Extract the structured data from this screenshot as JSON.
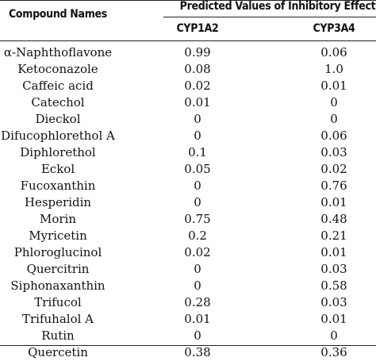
{
  "table": {
    "header": {
      "compound_label": "Compound Names",
      "group_label": "Predicted Values of Inhibitory Effect",
      "col_a": "CYP1A2",
      "col_b": "CYP3A4"
    },
    "rows": [
      {
        "name": "α-Naphthoflavone",
        "cyp1a2": "0.99",
        "cyp3a4": "0.06"
      },
      {
        "name": "Ketoconazole",
        "cyp1a2": "0.08",
        "cyp3a4": "1.0"
      },
      {
        "name": "Caffeic acid",
        "cyp1a2": "0.02",
        "cyp3a4": "0.01"
      },
      {
        "name": "Catechol",
        "cyp1a2": "0.01",
        "cyp3a4": "0"
      },
      {
        "name": "Dieckol",
        "cyp1a2": "0",
        "cyp3a4": "0"
      },
      {
        "name": "Difucophlorethol A",
        "cyp1a2": "0",
        "cyp3a4": "0.06"
      },
      {
        "name": "Diphlorethol",
        "cyp1a2": "0.1",
        "cyp3a4": "0.03"
      },
      {
        "name": "Eckol",
        "cyp1a2": "0.05",
        "cyp3a4": "0.02"
      },
      {
        "name": "Fucoxanthin",
        "cyp1a2": "0",
        "cyp3a4": "0.76"
      },
      {
        "name": "Hesperidin",
        "cyp1a2": "0",
        "cyp3a4": "0.01"
      },
      {
        "name": "Morin",
        "cyp1a2": "0.75",
        "cyp3a4": "0.48"
      },
      {
        "name": "Myricetin",
        "cyp1a2": "0.2",
        "cyp3a4": "0.21"
      },
      {
        "name": "Phloroglucinol",
        "cyp1a2": "0.02",
        "cyp3a4": "0.01"
      },
      {
        "name": "Quercitrin",
        "cyp1a2": "0",
        "cyp3a4": "0.03"
      },
      {
        "name": "Siphonaxanthin",
        "cyp1a2": "0",
        "cyp3a4": "0.58"
      },
      {
        "name": "Trifucol",
        "cyp1a2": "0.28",
        "cyp3a4": "0.03"
      },
      {
        "name": "Trifuhalol A",
        "cyp1a2": "0.01",
        "cyp3a4": "0.01"
      },
      {
        "name": "Rutin",
        "cyp1a2": "0",
        "cyp3a4": "0"
      },
      {
        "name": "Quercetin",
        "cyp1a2": "0.38",
        "cyp3a4": "0.36"
      }
    ]
  }
}
